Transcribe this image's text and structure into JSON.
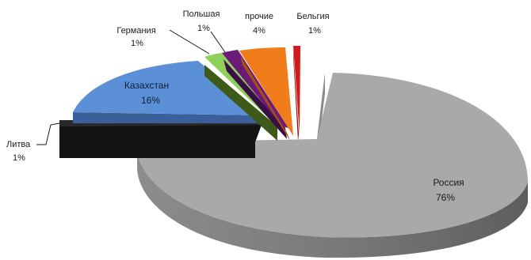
{
  "chart_data": {
    "type": "pie",
    "title": "",
    "three_d": true,
    "exploded": true,
    "legend": "none",
    "slices": [
      {
        "label": "Россия",
        "value_label": "76%",
        "value": 76,
        "color": "#a9a9a9"
      },
      {
        "label": "Литва",
        "value_label": "1%",
        "value": 1,
        "color": "#1f1f1f"
      },
      {
        "label": "Казахстан",
        "value_label": "16%",
        "value": 16,
        "color": "#5b8fd6"
      },
      {
        "label": "Германия",
        "value_label": "1%",
        "value": 1,
        "color": "#8fd05a"
      },
      {
        "label": "Польшая",
        "value_label": "1%",
        "value": 1,
        "color": "#6b1a7a"
      },
      {
        "label": "прочие",
        "value_label": "4%",
        "value": 4,
        "color": "#f07c1c"
      },
      {
        "label": "Бельгия",
        "value_label": "1%",
        "value": 1,
        "color": "#d11a1a"
      }
    ]
  }
}
